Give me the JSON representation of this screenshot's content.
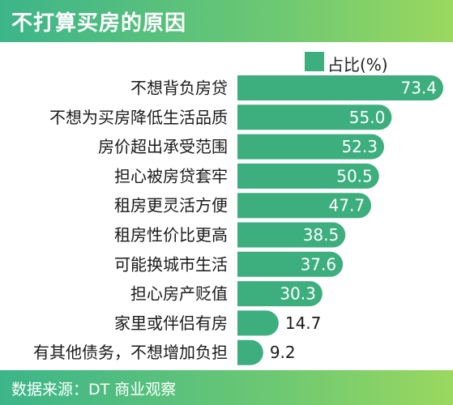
{
  "header": {
    "title": "不打算买房的原因"
  },
  "footer": {
    "source": "数据来源：DT 商业观察"
  },
  "colors": {
    "bar": "#3dae7e",
    "value_inside": "#ffffff",
    "value_outside": "#1a1a1a"
  },
  "chart_data": {
    "type": "bar",
    "orientation": "horizontal",
    "categories": [
      "不想背负房贷",
      "不想为买房降低生活品质",
      "房价超出承受范围",
      "担心被房贷套牢",
      "租房更灵活方便",
      "租房性价比更高",
      "可能换城市生活",
      "担心房产贬值",
      "家里或伴侣有房",
      "有其他债务，不想增加负担"
    ],
    "series": [
      {
        "name": "占比(%)",
        "values": [
          73.4,
          55.0,
          52.3,
          50.5,
          47.7,
          38.5,
          37.6,
          30.3,
          14.7,
          9.2
        ]
      }
    ],
    "value_labels": [
      "73.4",
      "55.0",
      "52.3",
      "50.5",
      "47.7",
      "38.5",
      "37.6",
      "30.3",
      "14.7",
      "9.2"
    ],
    "legend": "top-right",
    "grid": false
  }
}
